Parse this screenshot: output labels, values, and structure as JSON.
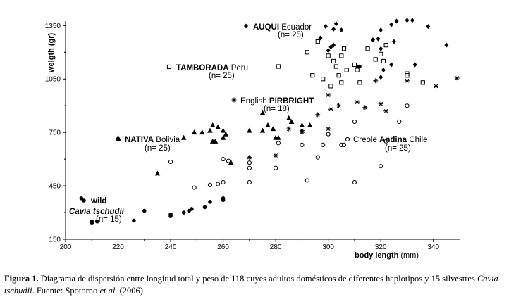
{
  "chart_data": {
    "type": "scatter",
    "xlabel": "body length",
    "xunit": "(mm)",
    "ylabel": "weigth (gr)",
    "xlim": [
      200,
      350
    ],
    "ylim": [
      150,
      1375
    ],
    "xticks": [
      200,
      220,
      240,
      260,
      280,
      300,
      320,
      340
    ],
    "yticks": [
      150,
      450,
      750,
      1050,
      1350
    ],
    "grid": false,
    "groups": [
      {
        "id": "auqui",
        "marker": "diamond",
        "label": {
          "bold": "AUQUI",
          "rest": " Ecuador",
          "n": "(n= 25)"
        },
        "points": [
          [
            299,
            1345
          ],
          [
            302,
            1330
          ],
          [
            303,
            1360
          ],
          [
            305,
            1325
          ],
          [
            301,
            1230
          ],
          [
            302,
            1240
          ],
          [
            297,
            1280
          ],
          [
            300,
            1210
          ],
          [
            317,
            1270
          ],
          [
            319,
            1275
          ],
          [
            325,
            1260
          ],
          [
            320,
            1220
          ],
          [
            320,
            1325
          ],
          [
            324,
            1355
          ],
          [
            326,
            1375
          ],
          [
            330,
            1380
          ],
          [
            332,
            1380
          ],
          [
            338,
            1345
          ],
          [
            345,
            1240
          ],
          [
            333,
            1130
          ],
          [
            321,
            1100
          ],
          [
            320,
            1060
          ],
          [
            312,
            1120
          ],
          [
            311,
            1120
          ],
          [
            324,
            1130
          ]
        ]
      },
      {
        "id": "tamborada",
        "marker": "square",
        "label": {
          "bold": "TAMBORADA",
          "rest": " Peru",
          "n": "(n= 25)"
        },
        "points": [
          [
            281,
            1120
          ],
          [
            294,
            1070
          ],
          [
            292,
            1200
          ],
          [
            296,
            1260
          ],
          [
            298,
            1050
          ],
          [
            300,
            1180
          ],
          [
            302,
            1150
          ],
          [
            303,
            1120
          ],
          [
            304,
            1070
          ],
          [
            307,
            1100
          ],
          [
            306,
            1220
          ],
          [
            311,
            1100
          ],
          [
            310,
            1130
          ],
          [
            315,
            1220
          ],
          [
            305,
            1180
          ],
          [
            318,
            1160
          ],
          [
            320,
            1190
          ],
          [
            322,
            1240
          ],
          [
            321,
            1150
          ],
          [
            330,
            1080
          ],
          [
            336,
            1030
          ],
          [
            330,
            1070
          ],
          [
            305,
            1030
          ],
          [
            312,
            1030
          ],
          [
            301,
            1010
          ]
        ]
      },
      {
        "id": "pirbright",
        "marker": "asterisk",
        "label": {
          "pre": "English ",
          "bold": "PIRBRIGHT",
          "n": "(n= 18)"
        },
        "points": [
          [
            270,
            610
          ],
          [
            280,
            620
          ],
          [
            285,
            770
          ],
          [
            290,
            760
          ],
          [
            290,
            750
          ],
          [
            296,
            850
          ],
          [
            300,
            770
          ],
          [
            301,
            880
          ],
          [
            304,
            900
          ],
          [
            311,
            920
          ],
          [
            314,
            890
          ],
          [
            318,
            1040
          ],
          [
            320,
            910
          ],
          [
            322,
            870
          ],
          [
            330,
            1040
          ],
          [
            341,
            1010
          ],
          [
            349,
            1055
          ],
          [
            300,
            960
          ]
        ]
      },
      {
        "id": "andina",
        "marker": "circle",
        "label": {
          "pre": "Creole ",
          "bold": "Andina",
          "rest": " Chile",
          "n": "(n= 25)"
        },
        "points": [
          [
            240,
            585
          ],
          [
            249,
            440
          ],
          [
            255,
            455
          ],
          [
            258,
            460
          ],
          [
            260,
            470
          ],
          [
            260,
            600
          ],
          [
            262,
            590
          ],
          [
            270,
            580
          ],
          [
            270,
            470
          ],
          [
            270,
            550
          ],
          [
            280,
            550
          ],
          [
            281,
            690
          ],
          [
            290,
            680
          ],
          [
            292,
            480
          ],
          [
            296,
            610
          ],
          [
            298,
            680
          ],
          [
            300,
            740
          ],
          [
            305,
            680
          ],
          [
            306,
            680
          ],
          [
            310,
            470
          ],
          [
            310,
            810
          ],
          [
            320,
            560
          ],
          [
            322,
            700
          ],
          [
            327,
            810
          ],
          [
            330,
            900
          ]
        ]
      },
      {
        "id": "nativa",
        "marker": "triangle",
        "label": {
          "bold": "NATIVA",
          "rest": " Bolivia",
          "n": "(n= 25)"
        },
        "points": [
          [
            220,
            720
          ],
          [
            235,
            520
          ],
          [
            245,
            720
          ],
          [
            249,
            750
          ],
          [
            252,
            750
          ],
          [
            255,
            760
          ],
          [
            256,
            790
          ],
          [
            256,
            700
          ],
          [
            257,
            700
          ],
          [
            258,
            780
          ],
          [
            260,
            760
          ],
          [
            261,
            740
          ],
          [
            260,
            720
          ],
          [
            263,
            580
          ],
          [
            270,
            760
          ],
          [
            275,
            860
          ],
          [
            275,
            760
          ],
          [
            277,
            790
          ],
          [
            279,
            770
          ],
          [
            280,
            720
          ],
          [
            281,
            720
          ],
          [
            285,
            830
          ],
          [
            286,
            810
          ],
          [
            290,
            790
          ],
          [
            293,
            790
          ]
        ]
      },
      {
        "id": "wild",
        "marker": "filled-circle",
        "label": {
          "bold": "wild",
          "species": "Cavia tschudii",
          "n": "(n= 15)"
        },
        "points": [
          [
            206,
            380
          ],
          [
            210,
            240
          ],
          [
            212,
            250
          ],
          [
            226,
            255
          ],
          [
            230,
            310
          ],
          [
            240,
            290
          ],
          [
            240,
            280
          ],
          [
            245,
            300
          ],
          [
            247,
            310
          ],
          [
            248,
            320
          ],
          [
            253,
            330
          ],
          [
            255,
            360
          ],
          [
            260,
            370
          ],
          [
            260,
            380
          ],
          [
            210,
            250
          ]
        ]
      }
    ]
  },
  "caption": {
    "label": "Figura 1.",
    "text_a": " Diagrama de dispersión entre longitud total y peso de 118 cuyes adultos domésticos de diferentes haplotipos y 15 silvestres ",
    "species": "Cavia tschudii",
    "text_b": ". Fuente: Spotorno ",
    "etal": "et al.",
    "text_c": " (2006)"
  }
}
